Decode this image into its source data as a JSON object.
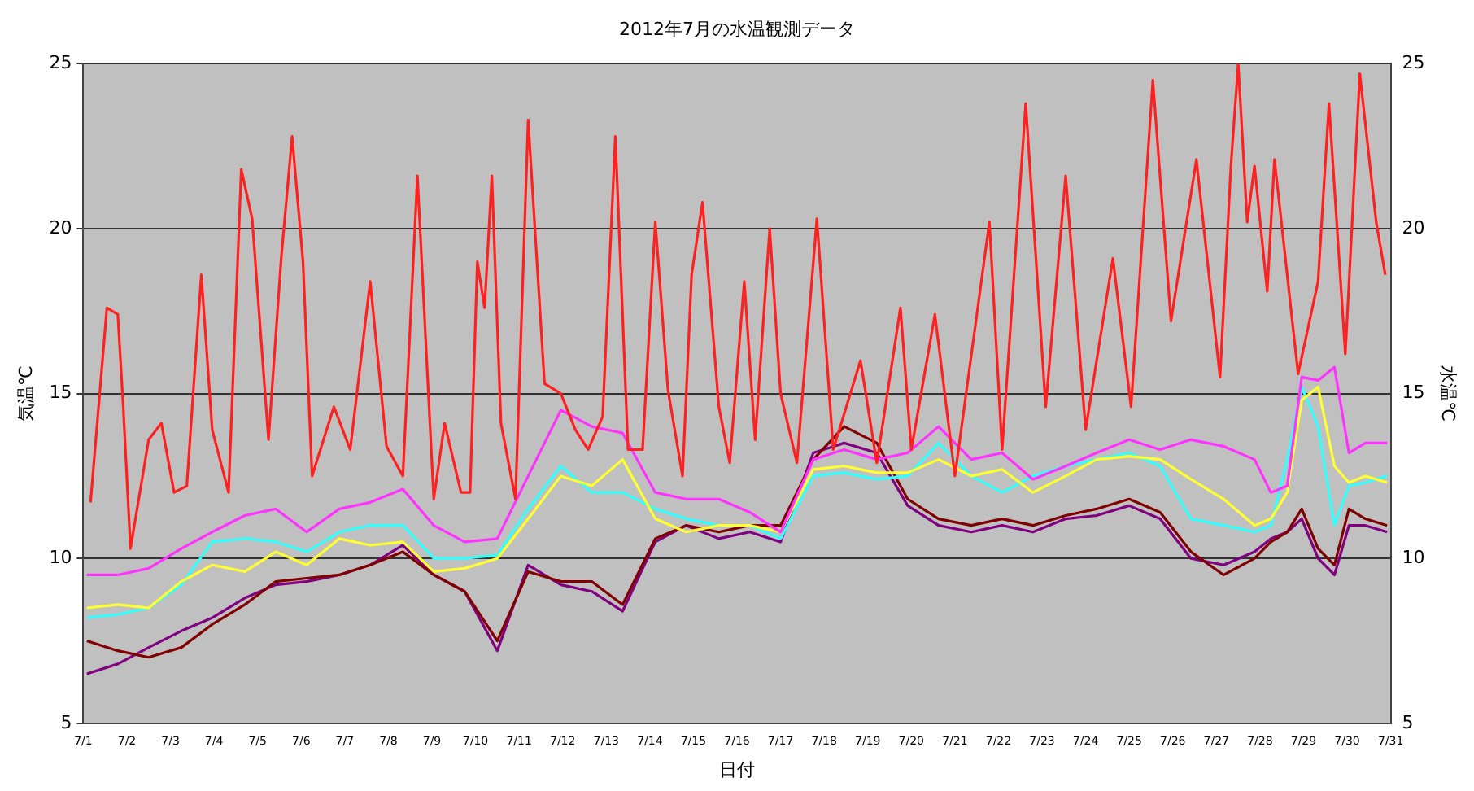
{
  "chart_data": {
    "type": "line",
    "title": "2012年7月の水温観測データ",
    "xlabel": "日付",
    "ylabel": "気温℃",
    "y2label": "水温℃",
    "xlim": [
      "2012-07-01",
      "2012-07-31"
    ],
    "xticks": [
      {
        "value": "2012-07-01",
        "label": "7/1"
      },
      {
        "value": "2012-07-02",
        "label": "7/2"
      },
      {
        "value": "2012-07-03",
        "label": "7/3"
      },
      {
        "value": "2012-07-04",
        "label": "7/4"
      },
      {
        "value": "2012-07-05",
        "label": "7/5"
      },
      {
        "value": "2012-07-06",
        "label": "7/6"
      },
      {
        "value": "2012-07-07",
        "label": "7/7"
      },
      {
        "value": "2012-07-08",
        "label": "7/8"
      },
      {
        "value": "2012-07-09",
        "label": "7/9"
      },
      {
        "value": "2012-07-10",
        "label": "7/10"
      },
      {
        "value": "2012-07-11",
        "label": "7/11"
      },
      {
        "value": "2012-07-12",
        "label": "7/12"
      },
      {
        "value": "2012-07-13",
        "label": "7/13"
      },
      {
        "value": "2012-07-14",
        "label": "7/14"
      },
      {
        "value": "2012-07-15",
        "label": "7/15"
      },
      {
        "value": "2012-07-16",
        "label": "7/16"
      },
      {
        "value": "2012-07-17",
        "label": "7/17"
      },
      {
        "value": "2012-07-18",
        "label": "7/18"
      },
      {
        "value": "2012-07-19",
        "label": "7/19"
      },
      {
        "value": "2012-07-20",
        "label": "7/20"
      },
      {
        "value": "2012-07-21",
        "label": "7/21"
      },
      {
        "value": "2012-07-22",
        "label": "7/22"
      },
      {
        "value": "2012-07-23",
        "label": "7/23"
      },
      {
        "value": "2012-07-24",
        "label": "7/24"
      },
      {
        "value": "2012-07-25",
        "label": "7/25"
      },
      {
        "value": "2012-07-26",
        "label": "7/26"
      },
      {
        "value": "2012-07-27",
        "label": "7/27"
      },
      {
        "value": "2012-07-28",
        "label": "7/28"
      },
      {
        "value": "2012-07-29",
        "label": "7/29"
      },
      {
        "value": "2012-07-30",
        "label": "7/30"
      },
      {
        "value": "2012-07-31",
        "label": "7/31"
      }
    ],
    "ylim": [
      5,
      25
    ],
    "yticks": [
      5,
      10,
      15,
      20,
      25
    ],
    "y2lim": [
      5,
      25
    ],
    "y2ticks": [
      5,
      10,
      15,
      20,
      25
    ],
    "grid": "y",
    "legend": false,
    "marker": "none",
    "line_style": "solid",
    "x": [
      "2012-07-01T02:00",
      "2012-07-01T19:00",
      "2012-07-02T12:00",
      "2012-07-03T06:00",
      "2012-07-03T23:00",
      "2012-07-04T17:00",
      "2012-07-05T10:00",
      "2012-07-06T03:00",
      "2012-07-06T21:00",
      "2012-07-07T14:00",
      "2012-07-08T08:00",
      "2012-07-09T01:00",
      "2012-07-09T18:00",
      "2012-07-10T12:00",
      "2012-07-11T05:00",
      "2012-07-11T23:00",
      "2012-07-12T16:00",
      "2012-07-13T09:00",
      "2012-07-14T03:00",
      "2012-07-14T20:00",
      "2012-07-15T14:00",
      "2012-07-16T07:00",
      "2012-07-17T00:00",
      "2012-07-17T18:00",
      "2012-07-18T11:00",
      "2012-07-19T05:00",
      "2012-07-19T22:00",
      "2012-07-20T15:00",
      "2012-07-21T09:00",
      "2012-07-22T02:00",
      "2012-07-22T19:00",
      "2012-07-23T13:00",
      "2012-07-24T06:00",
      "2012-07-25T00:00",
      "2012-07-25T17:00",
      "2012-07-26T10:00",
      "2012-07-27T04:00",
      "2012-07-27T21:00",
      "2012-07-28T06:00",
      "2012-07-28T15:00",
      "2012-07-28T23:00",
      "2012-07-29T08:00",
      "2012-07-29T17:00",
      "2012-07-30T01:00",
      "2012-07-30T10:00",
      "2012-07-30T22:00"
    ],
    "series": [
      {
        "color": "#ff2020",
        "x": [
          "2012-07-01T04:00",
          "2012-07-01T13:00",
          "2012-07-01T19:00",
          "2012-07-01T22:00",
          "2012-07-02T02:00",
          "2012-07-02T12:00",
          "2012-07-02T19:00",
          "2012-07-03T02:00",
          "2012-07-03T09:00",
          "2012-07-03T17:00",
          "2012-07-03T23:00",
          "2012-07-04T08:00",
          "2012-07-04T15:00",
          "2012-07-04T21:00",
          "2012-07-05T06:00",
          "2012-07-05T13:00",
          "2012-07-05T19:00",
          "2012-07-06T01:00",
          "2012-07-06T06:00",
          "2012-07-06T18:00",
          "2012-07-07T03:00",
          "2012-07-07T14:00",
          "2012-07-07T23:00",
          "2012-07-08T08:00",
          "2012-07-08T16:00",
          "2012-07-09T01:00",
          "2012-07-09T07:00",
          "2012-07-09T16:00",
          "2012-07-09T21:00",
          "2012-07-10T01:00",
          "2012-07-10T05:00",
          "2012-07-10T09:00",
          "2012-07-10T14:00",
          "2012-07-10T22:00",
          "2012-07-11T05:00",
          "2012-07-11T14:00",
          "2012-07-11T23:00",
          "2012-07-12T07:00",
          "2012-07-12T14:00",
          "2012-07-12T22:00",
          "2012-07-13T05:00",
          "2012-07-13T12:00",
          "2012-07-13T20:00",
          "2012-07-14T03:00",
          "2012-07-14T10:00",
          "2012-07-14T18:00",
          "2012-07-14T23:00",
          "2012-07-15T05:00",
          "2012-07-15T14:00",
          "2012-07-15T20:00",
          "2012-07-16T04:00",
          "2012-07-16T10:00",
          "2012-07-16T18:00",
          "2012-07-17T00:00",
          "2012-07-17T09:00",
          "2012-07-17T20:00",
          "2012-07-18T05:00",
          "2012-07-18T20:00",
          "2012-07-19T05:00",
          "2012-07-19T18:00",
          "2012-07-20T00:00",
          "2012-07-20T13:00",
          "2012-07-21T00:00",
          "2012-07-21T19:00",
          "2012-07-22T02:00",
          "2012-07-22T15:00",
          "2012-07-23T02:00",
          "2012-07-23T13:00",
          "2012-07-24T00:00",
          "2012-07-24T15:00",
          "2012-07-25T01:00",
          "2012-07-25T13:00",
          "2012-07-25T23:00",
          "2012-07-26T13:00",
          "2012-07-27T02:00",
          "2012-07-27T08:00",
          "2012-07-27T12:00",
          "2012-07-27T17:00",
          "2012-07-27T21:00",
          "2012-07-28T04:00",
          "2012-07-28T08:00",
          "2012-07-28T17:00",
          "2012-07-28T21:00",
          "2012-07-29T08:00",
          "2012-07-29T14:00",
          "2012-07-29T23:00",
          "2012-07-30T07:00",
          "2012-07-30T16:00",
          "2012-07-30T21:00"
        ],
        "values": [
          11.7,
          17.6,
          17.4,
          14.6,
          10.3,
          13.6,
          14.1,
          12.0,
          12.2,
          18.6,
          13.9,
          12.0,
          21.8,
          20.3,
          13.6,
          19.1,
          22.8,
          19.0,
          12.5,
          14.6,
          13.3,
          18.4,
          13.4,
          12.5,
          21.6,
          11.8,
          14.1,
          12.0,
          12.0,
          19.0,
          17.6,
          21.6,
          14.1,
          11.8,
          23.3,
          15.3,
          15.0,
          13.9,
          13.3,
          14.3,
          22.8,
          13.3,
          13.3,
          20.2,
          15.1,
          12.5,
          18.6,
          20.8,
          14.6,
          12.9,
          18.4,
          13.6,
          20.0,
          15.0,
          12.9,
          20.3,
          13.3,
          16.0,
          12.9,
          17.6,
          13.3,
          17.4,
          12.5,
          20.2,
          13.3,
          23.8,
          14.6,
          21.6,
          13.9,
          19.1,
          14.6,
          24.5,
          17.2,
          22.1,
          15.5,
          21.9,
          25.0,
          20.2,
          21.9,
          18.1,
          22.1,
          17.6,
          15.6,
          18.4,
          23.8,
          16.2,
          24.7,
          20.2,
          18.6
        ]
      },
      {
        "color": "#ff33ff",
        "axis": "y2",
        "values": [
          9.5,
          9.5,
          9.7,
          10.3,
          10.8,
          11.3,
          11.5,
          10.8,
          11.5,
          11.7,
          12.1,
          11.0,
          10.5,
          10.6,
          12.5,
          14.5,
          14.0,
          13.8,
          12.0,
          11.8,
          11.8,
          11.4,
          10.8,
          13.0,
          13.3,
          13.0,
          13.2,
          14.0,
          13.0,
          13.2,
          12.4,
          12.8,
          13.2,
          13.6,
          13.3,
          13.6,
          13.4,
          13.0,
          12.0,
          12.2,
          15.5,
          15.4,
          15.8,
          13.2,
          13.5,
          13.5
        ]
      },
      {
        "color": "#ffff33",
        "axis": "y2",
        "values": [
          8.5,
          8.6,
          8.5,
          9.3,
          9.8,
          9.6,
          10.2,
          9.8,
          10.6,
          10.4,
          10.5,
          9.6,
          9.7,
          10.0,
          11.2,
          12.5,
          12.2,
          13.0,
          11.2,
          10.8,
          11.0,
          11.0,
          10.8,
          12.7,
          12.8,
          12.6,
          12.6,
          13.0,
          12.5,
          12.7,
          12.0,
          12.5,
          13.0,
          13.1,
          13.0,
          12.4,
          11.8,
          11.0,
          11.2,
          12.0,
          14.8,
          15.2,
          12.8,
          12.3,
          12.5,
          12.3
        ]
      },
      {
        "color": "#33ffff",
        "axis": "y2",
        "values": [
          8.2,
          8.3,
          8.5,
          9.2,
          10.5,
          10.6,
          10.5,
          10.2,
          10.8,
          11.0,
          11.0,
          10.0,
          10.0,
          10.1,
          11.5,
          12.8,
          12.0,
          12.0,
          11.5,
          11.2,
          11.0,
          11.0,
          10.6,
          12.5,
          12.6,
          12.4,
          12.5,
          13.5,
          12.5,
          12.0,
          12.5,
          12.8,
          13.0,
          13.2,
          12.8,
          11.2,
          11.0,
          10.8,
          11.0,
          13.0,
          15.2,
          14.0,
          11.0,
          12.2,
          12.3,
          12.5
        ]
      },
      {
        "color": "#800000",
        "axis": "y2",
        "values": [
          7.5,
          7.2,
          7.0,
          7.3,
          8.0,
          8.6,
          9.3,
          9.4,
          9.5,
          9.8,
          10.2,
          9.5,
          9.0,
          7.5,
          9.6,
          9.3,
          9.3,
          8.6,
          10.6,
          11.0,
          10.8,
          11.0,
          11.0,
          13.0,
          14.0,
          13.5,
          11.8,
          11.2,
          11.0,
          11.2,
          11.0,
          11.3,
          11.5,
          11.8,
          11.4,
          10.2,
          9.5,
          10.0,
          10.5,
          10.8,
          11.5,
          10.3,
          9.8,
          11.5,
          11.2,
          11.0
        ]
      },
      {
        "color": "#800080",
        "axis": "y2",
        "values": [
          6.5,
          6.8,
          7.3,
          7.8,
          8.2,
          8.8,
          9.2,
          9.3,
          9.5,
          9.8,
          10.4,
          9.5,
          9.0,
          7.2,
          9.8,
          9.2,
          9.0,
          8.4,
          10.5,
          11.0,
          10.6,
          10.8,
          10.5,
          13.2,
          13.5,
          13.2,
          11.6,
          11.0,
          10.8,
          11.0,
          10.8,
          11.2,
          11.3,
          11.6,
          11.2,
          10.0,
          9.8,
          10.2,
          10.6,
          10.8,
          11.2,
          10.0,
          9.5,
          11.0,
          11.0,
          10.8
        ]
      }
    ]
  }
}
